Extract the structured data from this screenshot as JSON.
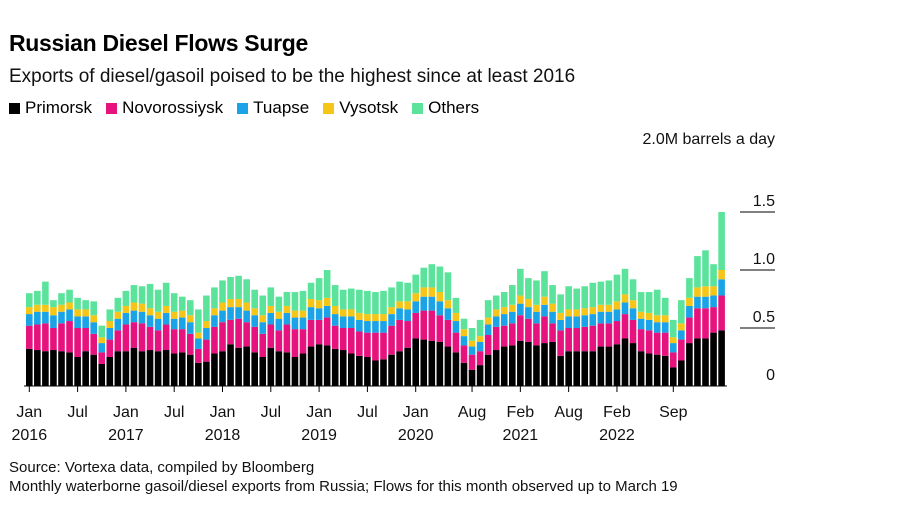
{
  "chart_data": {
    "type": "bar",
    "stacked": true,
    "title": "Russian Diesel Flows Surge",
    "subtitle": "Exports of diesel/gasoil poised to be the highest since at least 2016",
    "units_label": "2.0M barrels a day",
    "ylim": [
      0,
      2.0
    ],
    "y_ticks": [
      "1.5",
      "1.0",
      "0.5",
      "0"
    ],
    "y_tick_values": [
      1.5,
      1.0,
      0.5,
      0
    ],
    "x_tick_labels": [
      {
        "month": "Jan",
        "year": "2016",
        "index": 0
      },
      {
        "month": "Jul",
        "year": "",
        "index": 6
      },
      {
        "month": "Jan",
        "year": "2017",
        "index": 12
      },
      {
        "month": "Jul",
        "year": "",
        "index": 18
      },
      {
        "month": "Jan",
        "year": "2018",
        "index": 24
      },
      {
        "month": "Jul",
        "year": "",
        "index": 30
      },
      {
        "month": "Jan",
        "year": "2019",
        "index": 36
      },
      {
        "month": "Jul",
        "year": "",
        "index": 42
      },
      {
        "month": "Jan",
        "year": "2020",
        "index": 48
      },
      {
        "month": "Aug",
        "year": "",
        "index": 55
      },
      {
        "month": "Feb",
        "year": "2021",
        "index": 61
      },
      {
        "month": "Aug",
        "year": "",
        "index": 67
      },
      {
        "month": "Feb",
        "year": "2022",
        "index": 73
      },
      {
        "month": "Sep",
        "year": "",
        "index": 80
      }
    ],
    "series": [
      {
        "name": "Primorsk",
        "color": "#000000",
        "values": [
          0.32,
          0.31,
          0.3,
          0.31,
          0.3,
          0.29,
          0.25,
          0.3,
          0.27,
          0.19,
          0.25,
          0.3,
          0.3,
          0.33,
          0.3,
          0.31,
          0.3,
          0.31,
          0.28,
          0.29,
          0.27,
          0.2,
          0.21,
          0.28,
          0.3,
          0.36,
          0.33,
          0.34,
          0.29,
          0.25,
          0.33,
          0.3,
          0.29,
          0.25,
          0.28,
          0.34,
          0.36,
          0.35,
          0.32,
          0.31,
          0.28,
          0.26,
          0.25,
          0.22,
          0.23,
          0.27,
          0.3,
          0.33,
          0.41,
          0.4,
          0.39,
          0.38,
          0.34,
          0.29,
          0.2,
          0.14,
          0.18,
          0.27,
          0.31,
          0.34,
          0.35,
          0.39,
          0.38,
          0.35,
          0.37,
          0.38,
          0.26,
          0.3,
          0.3,
          0.3,
          0.3,
          0.34,
          0.34,
          0.36,
          0.41,
          0.37,
          0.3,
          0.28,
          0.27,
          0.26,
          0.16,
          0.22,
          0.37,
          0.41,
          0.41,
          0.46,
          0.48
        ]
      },
      {
        "name": "Novorossiysk",
        "color": "#e6127d",
        "values": [
          0.2,
          0.22,
          0.24,
          0.19,
          0.24,
          0.27,
          0.25,
          0.2,
          0.18,
          0.1,
          0.15,
          0.18,
          0.23,
          0.22,
          0.24,
          0.2,
          0.18,
          0.22,
          0.21,
          0.2,
          0.18,
          0.12,
          0.19,
          0.23,
          0.25,
          0.21,
          0.25,
          0.21,
          0.22,
          0.2,
          0.2,
          0.18,
          0.24,
          0.24,
          0.21,
          0.23,
          0.21,
          0.24,
          0.2,
          0.19,
          0.22,
          0.21,
          0.21,
          0.24,
          0.23,
          0.25,
          0.27,
          0.23,
          0.22,
          0.25,
          0.26,
          0.23,
          0.23,
          0.17,
          0.15,
          0.13,
          0.12,
          0.17,
          0.2,
          0.18,
          0.19,
          0.22,
          0.2,
          0.19,
          0.23,
          0.16,
          0.22,
          0.2,
          0.2,
          0.21,
          0.22,
          0.2,
          0.2,
          0.2,
          0.21,
          0.2,
          0.19,
          0.2,
          0.19,
          0.2,
          0.13,
          0.18,
          0.22,
          0.26,
          0.26,
          0.22,
          0.3
        ]
      },
      {
        "name": "Tuapse",
        "color": "#1aa3e6",
        "values": [
          0.1,
          0.11,
          0.1,
          0.11,
          0.1,
          0.1,
          0.1,
          0.1,
          0.1,
          0.08,
          0.1,
          0.1,
          0.1,
          0.1,
          0.1,
          0.1,
          0.1,
          0.1,
          0.09,
          0.1,
          0.1,
          0.09,
          0.1,
          0.1,
          0.1,
          0.11,
          0.1,
          0.1,
          0.1,
          0.1,
          0.1,
          0.1,
          0.1,
          0.1,
          0.1,
          0.11,
          0.1,
          0.1,
          0.1,
          0.1,
          0.1,
          0.1,
          0.1,
          0.1,
          0.1,
          0.1,
          0.1,
          0.1,
          0.1,
          0.12,
          0.12,
          0.12,
          0.1,
          0.1,
          0.08,
          0.07,
          0.08,
          0.09,
          0.09,
          0.1,
          0.1,
          0.1,
          0.1,
          0.1,
          0.1,
          0.1,
          0.09,
          0.1,
          0.1,
          0.1,
          0.1,
          0.1,
          0.1,
          0.1,
          0.1,
          0.1,
          0.09,
          0.09,
          0.09,
          0.09,
          0.08,
          0.08,
          0.1,
          0.1,
          0.1,
          0.1,
          0.14
        ]
      },
      {
        "name": "Vysotsk",
        "color": "#f5c518",
        "values": [
          0.06,
          0.06,
          0.06,
          0.07,
          0.06,
          0.06,
          0.06,
          0.06,
          0.06,
          0.05,
          0.06,
          0.06,
          0.06,
          0.07,
          0.07,
          0.06,
          0.06,
          0.06,
          0.06,
          0.06,
          0.06,
          0.05,
          0.06,
          0.06,
          0.07,
          0.07,
          0.07,
          0.07,
          0.06,
          0.06,
          0.06,
          0.06,
          0.06,
          0.06,
          0.06,
          0.07,
          0.07,
          0.07,
          0.07,
          0.06,
          0.06,
          0.06,
          0.06,
          0.06,
          0.06,
          0.06,
          0.06,
          0.07,
          0.07,
          0.08,
          0.08,
          0.08,
          0.07,
          0.07,
          0.06,
          0.05,
          0.05,
          0.06,
          0.06,
          0.06,
          0.06,
          0.07,
          0.07,
          0.06,
          0.07,
          0.07,
          0.06,
          0.06,
          0.06,
          0.06,
          0.06,
          0.06,
          0.06,
          0.07,
          0.07,
          0.07,
          0.06,
          0.06,
          0.06,
          0.06,
          0.05,
          0.06,
          0.07,
          0.08,
          0.09,
          0.08,
          0.08
        ]
      },
      {
        "name": "Others",
        "color": "#5be39c",
        "values": [
          0.12,
          0.12,
          0.2,
          0.06,
          0.1,
          0.11,
          0.1,
          0.08,
          0.12,
          0.1,
          0.1,
          0.12,
          0.13,
          0.15,
          0.15,
          0.21,
          0.19,
          0.2,
          0.16,
          0.12,
          0.13,
          0.2,
          0.22,
          0.18,
          0.19,
          0.19,
          0.2,
          0.2,
          0.16,
          0.17,
          0.16,
          0.13,
          0.12,
          0.16,
          0.17,
          0.14,
          0.19,
          0.24,
          0.18,
          0.17,
          0.18,
          0.2,
          0.2,
          0.19,
          0.2,
          0.17,
          0.17,
          0.16,
          0.16,
          0.17,
          0.2,
          0.22,
          0.24,
          0.13,
          0.09,
          0.11,
          0.14,
          0.15,
          0.12,
          0.13,
          0.17,
          0.23,
          0.18,
          0.21,
          0.22,
          0.16,
          0.16,
          0.2,
          0.18,
          0.19,
          0.21,
          0.2,
          0.21,
          0.23,
          0.22,
          0.18,
          0.17,
          0.18,
          0.22,
          0.15,
          0.15,
          0.2,
          0.17,
          0.27,
          0.31,
          0.19,
          0.5
        ]
      }
    ]
  },
  "footer": {
    "source": "Source: Vortexa data, compiled by Bloomberg",
    "note": "Monthly waterborne gasoil/diesel exports from Russia; Flows for this month observed up to March 19"
  }
}
